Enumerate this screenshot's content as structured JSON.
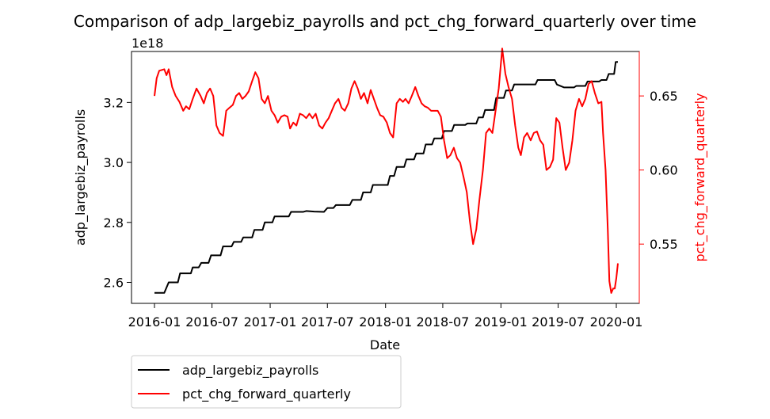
{
  "chart_data": {
    "type": "line",
    "title": "Comparison of adp_largebiz_payrolls and pct_chg_forward_quarterly over time",
    "xlabel": "Date",
    "x_ticks": [
      "2016-01",
      "2016-07",
      "2017-01",
      "2017-07",
      "2018-01",
      "2018-07",
      "2019-01",
      "2019-07",
      "2020-01"
    ],
    "left_axis": {
      "label": "adp_largebiz_payrolls",
      "offset_text": "1e18",
      "ticks": [
        "2.6",
        "2.8",
        "3.0",
        "3.2"
      ],
      "range": [
        2.53,
        3.37
      ],
      "color": "#000000"
    },
    "right_axis": {
      "label": "pct_chg_forward_quarterly",
      "ticks": [
        "0.55",
        "0.60",
        "0.65"
      ],
      "range": [
        0.51,
        0.68
      ],
      "color": "#ff0000"
    },
    "legend": {
      "placement": "below-left",
      "entries": [
        "adp_largebiz_payrolls",
        "pct_chg_forward_quarterly"
      ]
    },
    "series": [
      {
        "name": "adp_largebiz_payrolls",
        "axis": "left",
        "color": "#000000",
        "points": [
          [
            "2016-01-01",
            2.565
          ],
          [
            "2016-02-01",
            2.565
          ],
          [
            "2016-02-15",
            2.6
          ],
          [
            "2016-03-15",
            2.6
          ],
          [
            "2016-03-22",
            2.63
          ],
          [
            "2016-04-25",
            2.63
          ],
          [
            "2016-05-01",
            2.65
          ],
          [
            "2016-05-20",
            2.65
          ],
          [
            "2016-05-28",
            2.665
          ],
          [
            "2016-06-20",
            2.665
          ],
          [
            "2016-06-28",
            2.69
          ],
          [
            "2016-07-28",
            2.69
          ],
          [
            "2016-08-05",
            2.72
          ],
          [
            "2016-09-01",
            2.72
          ],
          [
            "2016-09-08",
            2.735
          ],
          [
            "2016-10-01",
            2.735
          ],
          [
            "2016-10-08",
            2.75
          ],
          [
            "2016-11-05",
            2.75
          ],
          [
            "2016-11-12",
            2.775
          ],
          [
            "2016-12-08",
            2.775
          ],
          [
            "2016-12-15",
            2.8
          ],
          [
            "2017-01-08",
            2.8
          ],
          [
            "2017-01-15",
            2.82
          ],
          [
            "2017-03-01",
            2.82
          ],
          [
            "2017-03-08",
            2.835
          ],
          [
            "2017-04-15",
            2.835
          ],
          [
            "2017-04-25",
            2.838
          ],
          [
            "2017-05-20",
            2.836
          ],
          [
            "2017-06-20",
            2.835
          ],
          [
            "2017-07-01",
            2.848
          ],
          [
            "2017-07-20",
            2.848
          ],
          [
            "2017-07-28",
            2.858
          ],
          [
            "2017-09-10",
            2.858
          ],
          [
            "2017-09-18",
            2.875
          ],
          [
            "2017-10-15",
            2.875
          ],
          [
            "2017-10-22",
            2.9
          ],
          [
            "2017-11-15",
            2.9
          ],
          [
            "2017-11-22",
            2.925
          ],
          [
            "2018-01-08",
            2.925
          ],
          [
            "2018-01-15",
            2.955
          ],
          [
            "2018-01-28",
            2.955
          ],
          [
            "2018-02-05",
            2.985
          ],
          [
            "2018-03-01",
            2.985
          ],
          [
            "2018-03-08",
            3.01
          ],
          [
            "2018-04-01",
            3.01
          ],
          [
            "2018-04-08",
            3.03
          ],
          [
            "2018-05-01",
            3.03
          ],
          [
            "2018-05-08",
            3.06
          ],
          [
            "2018-05-28",
            3.06
          ],
          [
            "2018-06-04",
            3.08
          ],
          [
            "2018-06-28",
            3.08
          ],
          [
            "2018-07-05",
            3.105
          ],
          [
            "2018-07-30",
            3.105
          ],
          [
            "2018-08-06",
            3.125
          ],
          [
            "2018-09-10",
            3.125
          ],
          [
            "2018-09-17",
            3.13
          ],
          [
            "2018-10-15",
            3.13
          ],
          [
            "2018-10-22",
            3.15
          ],
          [
            "2018-11-05",
            3.15
          ],
          [
            "2018-11-12",
            3.175
          ],
          [
            "2018-12-10",
            3.175
          ],
          [
            "2018-12-17",
            3.215
          ],
          [
            "2019-01-10",
            3.215
          ],
          [
            "2019-01-17",
            3.24
          ],
          [
            "2019-02-05",
            3.24
          ],
          [
            "2019-02-12",
            3.26
          ],
          [
            "2019-04-20",
            3.26
          ],
          [
            "2019-04-27",
            3.275
          ],
          [
            "2019-06-20",
            3.275
          ],
          [
            "2019-06-27",
            3.26
          ],
          [
            "2019-07-20",
            3.25
          ],
          [
            "2019-08-20",
            3.25
          ],
          [
            "2019-08-27",
            3.255
          ],
          [
            "2019-09-25",
            3.255
          ],
          [
            "2019-10-02",
            3.27
          ],
          [
            "2019-11-08",
            3.27
          ],
          [
            "2019-11-15",
            3.275
          ],
          [
            "2019-12-01",
            3.275
          ],
          [
            "2019-12-08",
            3.295
          ],
          [
            "2019-12-25",
            3.295
          ],
          [
            "2019-12-30",
            3.335
          ],
          [
            "2020-01-06",
            3.335
          ]
        ]
      },
      {
        "name": "pct_chg_forward_quarterly",
        "axis": "right",
        "color": "#ff0000",
        "points": [
          [
            "2016-01-01",
            0.65
          ],
          [
            "2016-01-08",
            0.662
          ],
          [
            "2016-01-16",
            0.667
          ],
          [
            "2016-02-01",
            0.668
          ],
          [
            "2016-02-08",
            0.664
          ],
          [
            "2016-02-15",
            0.668
          ],
          [
            "2016-02-26",
            0.656
          ],
          [
            "2016-03-08",
            0.65
          ],
          [
            "2016-03-20",
            0.646
          ],
          [
            "2016-04-01",
            0.64
          ],
          [
            "2016-04-10",
            0.643
          ],
          [
            "2016-04-20",
            0.641
          ],
          [
            "2016-05-01",
            0.648
          ],
          [
            "2016-05-13",
            0.655
          ],
          [
            "2016-05-26",
            0.65
          ],
          [
            "2016-06-05",
            0.645
          ],
          [
            "2016-06-15",
            0.652
          ],
          [
            "2016-06-25",
            0.655
          ],
          [
            "2016-07-05",
            0.65
          ],
          [
            "2016-07-15",
            0.63
          ],
          [
            "2016-07-25",
            0.625
          ],
          [
            "2016-08-05",
            0.623
          ],
          [
            "2016-08-15",
            0.64
          ],
          [
            "2016-08-25",
            0.642
          ],
          [
            "2016-09-05",
            0.644
          ],
          [
            "2016-09-15",
            0.65
          ],
          [
            "2016-09-25",
            0.652
          ],
          [
            "2016-10-05",
            0.648
          ],
          [
            "2016-10-15",
            0.65
          ],
          [
            "2016-10-25",
            0.653
          ],
          [
            "2016-11-05",
            0.66
          ],
          [
            "2016-11-15",
            0.666
          ],
          [
            "2016-11-25",
            0.662
          ],
          [
            "2016-12-05",
            0.648
          ],
          [
            "2016-12-15",
            0.645
          ],
          [
            "2016-12-25",
            0.65
          ],
          [
            "2017-01-05",
            0.64
          ],
          [
            "2017-01-15",
            0.637
          ],
          [
            "2017-01-25",
            0.632
          ],
          [
            "2017-02-05",
            0.636
          ],
          [
            "2017-02-15",
            0.637
          ],
          [
            "2017-02-25",
            0.636
          ],
          [
            "2017-03-05",
            0.628
          ],
          [
            "2017-03-15",
            0.632
          ],
          [
            "2017-03-25",
            0.63
          ],
          [
            "2017-04-05",
            0.638
          ],
          [
            "2017-04-15",
            0.637
          ],
          [
            "2017-04-25",
            0.635
          ],
          [
            "2017-05-05",
            0.638
          ],
          [
            "2017-05-15",
            0.635
          ],
          [
            "2017-05-25",
            0.638
          ],
          [
            "2017-06-05",
            0.63
          ],
          [
            "2017-06-15",
            0.628
          ],
          [
            "2017-06-25",
            0.632
          ],
          [
            "2017-07-05",
            0.635
          ],
          [
            "2017-07-15",
            0.64
          ],
          [
            "2017-07-25",
            0.645
          ],
          [
            "2017-08-05",
            0.648
          ],
          [
            "2017-08-15",
            0.642
          ],
          [
            "2017-08-25",
            0.64
          ],
          [
            "2017-09-05",
            0.645
          ],
          [
            "2017-09-15",
            0.655
          ],
          [
            "2017-09-25",
            0.66
          ],
          [
            "2017-10-05",
            0.655
          ],
          [
            "2017-10-15",
            0.648
          ],
          [
            "2017-10-25",
            0.652
          ],
          [
            "2017-11-05",
            0.645
          ],
          [
            "2017-11-15",
            0.654
          ],
          [
            "2017-11-25",
            0.648
          ],
          [
            "2017-12-05",
            0.642
          ],
          [
            "2017-12-15",
            0.637
          ],
          [
            "2017-12-25",
            0.636
          ],
          [
            "2018-01-05",
            0.632
          ],
          [
            "2018-01-15",
            0.625
          ],
          [
            "2018-01-25",
            0.622
          ],
          [
            "2018-02-05",
            0.645
          ],
          [
            "2018-02-15",
            0.648
          ],
          [
            "2018-02-25",
            0.646
          ],
          [
            "2018-03-05",
            0.648
          ],
          [
            "2018-03-15",
            0.645
          ],
          [
            "2018-03-25",
            0.65
          ],
          [
            "2018-04-05",
            0.656
          ],
          [
            "2018-04-15",
            0.65
          ],
          [
            "2018-04-25",
            0.645
          ],
          [
            "2018-05-05",
            0.643
          ],
          [
            "2018-05-15",
            0.642
          ],
          [
            "2018-05-25",
            0.64
          ],
          [
            "2018-06-05",
            0.64
          ],
          [
            "2018-06-15",
            0.64
          ],
          [
            "2018-06-25",
            0.636
          ],
          [
            "2018-07-05",
            0.62
          ],
          [
            "2018-07-15",
            0.608
          ],
          [
            "2018-07-25",
            0.61
          ],
          [
            "2018-08-05",
            0.615
          ],
          [
            "2018-08-15",
            0.608
          ],
          [
            "2018-08-25",
            0.605
          ],
          [
            "2018-09-05",
            0.595
          ],
          [
            "2018-09-15",
            0.585
          ],
          [
            "2018-09-25",
            0.565
          ],
          [
            "2018-10-05",
            0.55
          ],
          [
            "2018-10-15",
            0.56
          ],
          [
            "2018-10-25",
            0.58
          ],
          [
            "2018-11-05",
            0.6
          ],
          [
            "2018-11-15",
            0.625
          ],
          [
            "2018-11-25",
            0.628
          ],
          [
            "2018-12-05",
            0.625
          ],
          [
            "2018-12-15",
            0.64
          ],
          [
            "2018-12-25",
            0.655
          ],
          [
            "2019-01-05",
            0.682
          ],
          [
            "2019-01-15",
            0.665
          ],
          [
            "2019-01-25",
            0.656
          ],
          [
            "2019-02-05",
            0.648
          ],
          [
            "2019-02-15",
            0.63
          ],
          [
            "2019-02-25",
            0.615
          ],
          [
            "2019-03-05",
            0.61
          ],
          [
            "2019-03-15",
            0.622
          ],
          [
            "2019-03-25",
            0.625
          ],
          [
            "2019-04-05",
            0.62
          ],
          [
            "2019-04-15",
            0.625
          ],
          [
            "2019-04-25",
            0.626
          ],
          [
            "2019-05-05",
            0.62
          ],
          [
            "2019-05-15",
            0.617
          ],
          [
            "2019-05-25",
            0.6
          ],
          [
            "2019-06-05",
            0.602
          ],
          [
            "2019-06-15",
            0.607
          ],
          [
            "2019-06-25",
            0.635
          ],
          [
            "2019-07-05",
            0.632
          ],
          [
            "2019-07-15",
            0.615
          ],
          [
            "2019-07-25",
            0.6
          ],
          [
            "2019-08-05",
            0.605
          ],
          [
            "2019-08-15",
            0.62
          ],
          [
            "2019-08-25",
            0.64
          ],
          [
            "2019-09-05",
            0.648
          ],
          [
            "2019-09-15",
            0.643
          ],
          [
            "2019-09-25",
            0.648
          ],
          [
            "2019-10-05",
            0.658
          ],
          [
            "2019-10-15",
            0.66
          ],
          [
            "2019-10-25",
            0.652
          ],
          [
            "2019-11-05",
            0.645
          ],
          [
            "2019-11-15",
            0.646
          ],
          [
            "2019-11-20",
            0.625
          ],
          [
            "2019-11-28",
            0.6
          ],
          [
            "2019-12-05",
            0.56
          ],
          [
            "2019-12-10",
            0.525
          ],
          [
            "2019-12-16",
            0.517
          ],
          [
            "2019-12-22",
            0.52
          ],
          [
            "2019-12-27",
            0.52
          ],
          [
            "2020-01-01",
            0.527
          ],
          [
            "2020-01-06",
            0.537
          ]
        ]
      }
    ]
  }
}
